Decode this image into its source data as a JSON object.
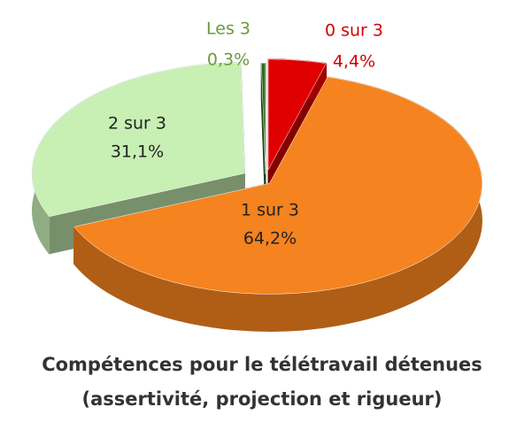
{
  "chart_data": {
    "type": "pie3d",
    "title": [
      "Compétences pour le télétravail détenues",
      "(assertivité, projection et rigueur)"
    ],
    "categories": [
      "0 sur 3",
      "1 sur 3",
      "2 sur 3",
      "Les 3"
    ],
    "values": [
      4.4,
      64.2,
      31.1,
      0.3
    ],
    "value_labels": [
      "4,4%",
      "64,2%",
      "31,1%",
      "0,3%"
    ],
    "colors": [
      "#e00000",
      "#f5831f",
      "#c8efb4",
      "#2e6b1f"
    ]
  }
}
